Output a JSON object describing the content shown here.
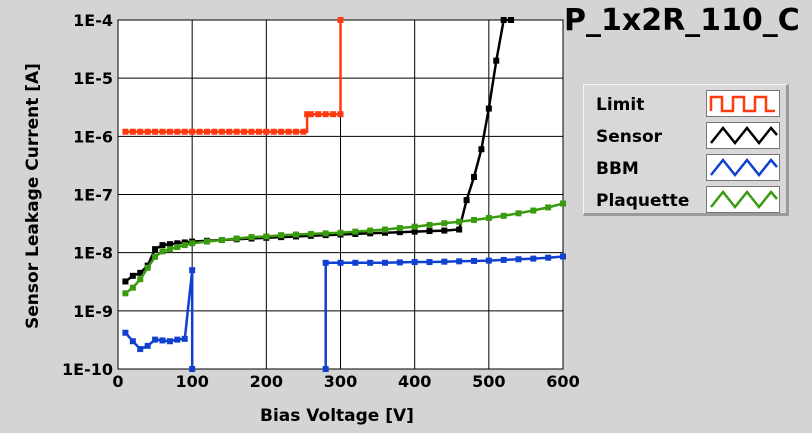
{
  "chart_data": {
    "type": "line",
    "title": "P_1x2R_110_C",
    "xlabel": "Bias Voltage [V]",
    "ylabel": "Sensor Leakage Current [A]",
    "xlim": [
      0,
      600
    ],
    "ylim": [
      1e-10,
      0.0001
    ],
    "yscale": "log",
    "grid": true,
    "legend_position": "right",
    "x_ticks": [
      0,
      100,
      200,
      300,
      400,
      500,
      600
    ],
    "y_ticks": [
      1e-10,
      1e-09,
      1e-08,
      1e-07,
      1e-06,
      1e-05,
      0.0001
    ],
    "x_tick_labels": [
      "0",
      "100",
      "200",
      "300",
      "400",
      "500",
      "600"
    ],
    "y_tick_labels": [
      "1E-10",
      "1E-9",
      "1E-8",
      "1E-7",
      "1E-6",
      "1E-5",
      "1E-4"
    ],
    "series": [
      {
        "name": "Limit",
        "color": "#ff3a10",
        "step": true,
        "points": [
          [
            10,
            1.2e-06
          ],
          [
            20,
            1.2e-06
          ],
          [
            30,
            1.2e-06
          ],
          [
            40,
            1.2e-06
          ],
          [
            50,
            1.2e-06
          ],
          [
            60,
            1.2e-06
          ],
          [
            70,
            1.2e-06
          ],
          [
            80,
            1.2e-06
          ],
          [
            90,
            1.2e-06
          ],
          [
            100,
            1.2e-06
          ],
          [
            110,
            1.2e-06
          ],
          [
            120,
            1.2e-06
          ],
          [
            130,
            1.2e-06
          ],
          [
            140,
            1.2e-06
          ],
          [
            150,
            1.2e-06
          ],
          [
            160,
            1.2e-06
          ],
          [
            170,
            1.2e-06
          ],
          [
            180,
            1.2e-06
          ],
          [
            190,
            1.2e-06
          ],
          [
            200,
            1.2e-06
          ],
          [
            210,
            1.2e-06
          ],
          [
            220,
            1.2e-06
          ],
          [
            230,
            1.2e-06
          ],
          [
            240,
            1.2e-06
          ],
          [
            250,
            1.2e-06
          ],
          [
            255,
            2.4e-06
          ],
          [
            260,
            2.4e-06
          ],
          [
            270,
            2.4e-06
          ],
          [
            280,
            2.4e-06
          ],
          [
            290,
            2.4e-06
          ],
          [
            300,
            2.4e-06
          ],
          [
            300,
            0.0001
          ]
        ]
      },
      {
        "name": "Sensor",
        "color": "#000000",
        "step": false,
        "points": [
          [
            10,
            3.2e-09
          ],
          [
            20,
            4e-09
          ],
          [
            30,
            4.5e-09
          ],
          [
            40,
            6e-09
          ],
          [
            50,
            1.15e-08
          ],
          [
            60,
            1.35e-08
          ],
          [
            70,
            1.4e-08
          ],
          [
            80,
            1.45e-08
          ],
          [
            90,
            1.5e-08
          ],
          [
            100,
            1.55e-08
          ],
          [
            120,
            1.6e-08
          ],
          [
            140,
            1.65e-08
          ],
          [
            160,
            1.7e-08
          ],
          [
            180,
            1.75e-08
          ],
          [
            200,
            1.8e-08
          ],
          [
            220,
            1.85e-08
          ],
          [
            240,
            1.9e-08
          ],
          [
            260,
            1.95e-08
          ],
          [
            280,
            2e-08
          ],
          [
            300,
            2.05e-08
          ],
          [
            320,
            2.1e-08
          ],
          [
            340,
            2.15e-08
          ],
          [
            360,
            2.2e-08
          ],
          [
            380,
            2.25e-08
          ],
          [
            400,
            2.3e-08
          ],
          [
            420,
            2.35e-08
          ],
          [
            440,
            2.4e-08
          ],
          [
            460,
            2.5e-08
          ],
          [
            470,
            8e-08
          ],
          [
            480,
            2e-07
          ],
          [
            490,
            6e-07
          ],
          [
            500,
            3e-06
          ],
          [
            510,
            2e-05
          ],
          [
            520,
            0.0001
          ],
          [
            530,
            0.0001
          ]
        ]
      },
      {
        "name": "BBM",
        "color": "#1040d0",
        "step": false,
        "segments": [
          [
            [
              10,
              4.2e-10
            ],
            [
              20,
              3e-10
            ],
            [
              30,
              2.2e-10
            ],
            [
              40,
              2.5e-10
            ],
            [
              50,
              3.2e-10
            ],
            [
              60,
              3.1e-10
            ],
            [
              70,
              3e-10
            ],
            [
              80,
              3.2e-10
            ],
            [
              90,
              3.3e-10
            ],
            [
              100,
              5e-09
            ],
            [
              100,
              1e-10
            ]
          ],
          [
            [
              280,
              1e-10
            ],
            [
              280,
              6.7e-09
            ],
            [
              300,
              6.7e-09
            ],
            [
              320,
              6.7e-09
            ],
            [
              340,
              6.7e-09
            ],
            [
              360,
              6.7e-09
            ],
            [
              380,
              6.8e-09
            ],
            [
              400,
              6.9e-09
            ],
            [
              420,
              6.9e-09
            ],
            [
              440,
              7e-09
            ],
            [
              460,
              7.1e-09
            ],
            [
              480,
              7.2e-09
            ],
            [
              500,
              7.3e-09
            ],
            [
              520,
              7.5e-09
            ],
            [
              540,
              7.7e-09
            ],
            [
              560,
              7.9e-09
            ],
            [
              580,
              8.2e-09
            ],
            [
              600,
              8.6e-09
            ]
          ]
        ]
      },
      {
        "name": "Plaquette",
        "color": "#3a9a10",
        "step": false,
        "points": [
          [
            10,
            2e-09
          ],
          [
            20,
            2.5e-09
          ],
          [
            30,
            3.5e-09
          ],
          [
            40,
            5.5e-09
          ],
          [
            50,
            8.5e-09
          ],
          [
            60,
            1.05e-08
          ],
          [
            70,
            1.15e-08
          ],
          [
            80,
            1.25e-08
          ],
          [
            90,
            1.35e-08
          ],
          [
            100,
            1.45e-08
          ],
          [
            120,
            1.55e-08
          ],
          [
            140,
            1.65e-08
          ],
          [
            160,
            1.75e-08
          ],
          [
            180,
            1.85e-08
          ],
          [
            200,
            1.9e-08
          ],
          [
            220,
            2e-08
          ],
          [
            240,
            2.05e-08
          ],
          [
            260,
            2.1e-08
          ],
          [
            280,
            2.15e-08
          ],
          [
            300,
            2.2e-08
          ],
          [
            320,
            2.3e-08
          ],
          [
            340,
            2.4e-08
          ],
          [
            360,
            2.5e-08
          ],
          [
            380,
            2.65e-08
          ],
          [
            400,
            2.8e-08
          ],
          [
            420,
            3e-08
          ],
          [
            440,
            3.2e-08
          ],
          [
            460,
            3.4e-08
          ],
          [
            480,
            3.65e-08
          ],
          [
            500,
            3.95e-08
          ],
          [
            520,
            4.3e-08
          ],
          [
            540,
            4.75e-08
          ],
          [
            560,
            5.3e-08
          ],
          [
            580,
            6e-08
          ],
          [
            600,
            7e-08
          ]
        ]
      }
    ]
  },
  "legend": {
    "items": [
      {
        "label": "Limit",
        "color": "#ff3a10"
      },
      {
        "label": "Sensor",
        "color": "#000000"
      },
      {
        "label": "BBM",
        "color": "#1040d0"
      },
      {
        "label": "Plaquette",
        "color": "#3a9a10"
      }
    ]
  }
}
